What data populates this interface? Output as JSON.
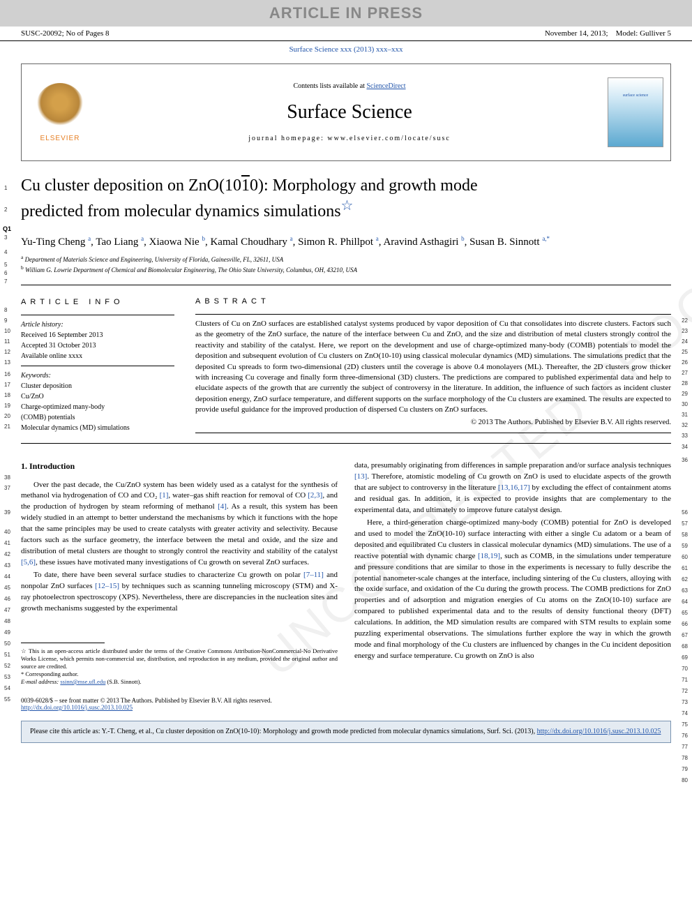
{
  "banner": "ARTICLE IN PRESS",
  "top_left": "SUSC-20092; No of Pages 8",
  "top_right_date": "November 14, 2013;",
  "top_right_model": "Model: Gulliver 5",
  "journal_ref": "Surface Science xxx (2013) xxx–xxx",
  "contents_prefix": "Contents lists available at ",
  "contents_link": "ScienceDirect",
  "journal_name": "Surface Science",
  "homepage": "journal homepage: www.elsevier.com/locate/susc",
  "elsevier": "ELSEVIER",
  "cover_label": "surface science",
  "title_line1": "Cu cluster deposition on ZnO(10",
  "title_line1_bar": "1",
  "title_line1_end": "0): Morphology and growth mode",
  "title_line2": "predicted from molecular dynamics simulations",
  "title_star": "☆",
  "authors_html": "Yu-Ting Cheng <sup>a</sup>, Tao Liang <sup>a</sup>, Xiaowa Nie <sup>b</sup>, Kamal Choudhary <sup>a</sup>, Simon R. Phillpot <sup>a</sup>, Aravind Asthagiri <sup>b</sup>, Susan B. Sinnott <sup>a,*</sup>",
  "aff_a": "Department of Materials Science and Engineering, University of Florida, Gainesville, FL, 32611, USA",
  "aff_b": "William G. Lowrie Department of Chemical and Biomolecular Engineering, The Ohio State University, Columbus, OH, 43210, USA",
  "q_marker": "Q1",
  "info_heading": "ARTICLE INFO",
  "history_label": "Article history:",
  "received": "Received 16 September 2013",
  "accepted": "Accepted 31 October 2013",
  "available": "Available online xxxx",
  "keywords_label": "Keywords:",
  "keywords": [
    "Cluster deposition",
    "Cu/ZnO",
    "Charge-optimized many-body",
    "(COMB) potentials",
    "Molecular dynamics (MD) simulations"
  ],
  "abstract_heading": "ABSTRACT",
  "abstract_text": "Clusters of Cu on ZnO surfaces are established catalyst systems produced by vapor deposition of Cu that consolidates into discrete clusters. Factors such as the geometry of the ZnO surface, the nature of the interface between Cu and ZnO, and the size and distribution of metal clusters strongly control the reactivity and stability of the catalyst. Here, we report on the development and use of charge-optimized many-body (COMB) potentials to model the deposition and subsequent evolution of Cu clusters on ZnO(10-10) using classical molecular dynamics (MD) simulations. The simulations predict that the deposited Cu spreads to form two-dimensional (2D) clusters until the coverage is above 0.4 monolayers (ML). Thereafter, the 2D clusters grow thicker with increasing Cu coverage and finally form three-dimensional (3D) clusters. The predictions are compared to published experimental data and help to elucidate aspects of the growth that are currently the subject of controversy in the literature. In addition, the influence of such factors as incident cluster deposition energy, ZnO surface temperature, and different supports on the surface morphology of the Cu clusters are examined. The results are expected to provide useful guidance for the improved production of dispersed Cu clusters on ZnO surfaces.",
  "copyright": "© 2013 The Authors. Published by Elsevier B.V. All rights reserved.",
  "sec1_heading": "1. Introduction",
  "col1_p1_a": "Over the past decade, the Cu/ZnO system has been widely used as a catalyst for the synthesis of methanol via hydrogenation of CO and CO₂ ",
  "col1_p1_r1": "[1]",
  "col1_p1_b": ", water–gas shift reaction for removal of CO ",
  "col1_p1_r2": "[2,3]",
  "col1_p1_c": ", and the production of hydrogen by steam reforming of methanol ",
  "col1_p1_r3": "[4]",
  "col1_p1_d": ". As a result, this system has been widely studied in an attempt to better understand the mechanisms by which it functions with the hope that the same principles may be used to create catalysts with greater activity and selectivity. Because factors such as the surface geometry, the interface between the metal and oxide, and the size and distribution of metal clusters are thought to strongly control the reactivity and stability of the catalyst ",
  "col1_p1_r4": "[5,6]",
  "col1_p1_e": ", these issues have motivated many investigations of Cu growth on several ZnO surfaces.",
  "col1_p2_a": "To date, there have been several surface studies to characterize Cu growth on polar ",
  "col1_p2_r1": "[7–11]",
  "col1_p2_b": " and nonpolar ZnO surfaces ",
  "col1_p2_r2": "[12–15]",
  "col1_p2_c": " by techniques such as scanning tunneling microscopy (STM) and X-ray photoelectron spectroscopy (XPS). Nevertheless, there are discrepancies in the nucleation sites and growth mechanisms suggested by the experimental",
  "col2_p1_a": "data, presumably originating from differences in sample preparation and/or surface analysis techniques ",
  "col2_p1_r1": "[13]",
  "col2_p1_b": ". Therefore, atomistic modeling of Cu growth on ZnO is used to elucidate aspects of the growth that are subject to controversy in the literature ",
  "col2_p1_r2": "[13,16,17]",
  "col2_p1_c": " by excluding the effect of containment atoms and residual gas. In addition, it is expected to provide insights that are complementary to the experimental data, and ultimately to improve future catalyst design.",
  "col2_p2_a": "Here, a third-generation charge-optimized many-body (COMB) potential for ZnO is developed and used to model the ZnO(10-10) surface interacting with either a single Cu adatom or a beam of deposited and equilibrated Cu clusters in classical molecular dynamics (MD) simulations. The use of a reactive potential with dynamic charge ",
  "col2_p2_r1": "[18,19]",
  "col2_p2_b": ", such as COMB, in the simulations under temperature and pressure conditions that are similar to those in the experiments is necessary to fully describe the potential nanometer-scale changes at the interface, including sintering of the Cu clusters, alloying with the oxide surface, and oxidation of the Cu during the growth process. The COMB predictions for ZnO properties and of adsorption and migration energies of Cu atoms on the ZnO(10-10) surface are compared to published experimental data and to the results of density functional theory (DFT) calculations. In addition, the MD simulation results are compared with STM results to explain some puzzling experimental observations. The simulations further explore the way in which the growth mode and final morphology of the Cu clusters are influenced by changes in the Cu incident deposition energy and surface temperature. Cu growth on ZnO is also",
  "fn_star": "☆ This is an open-access article distributed under the terms of the Creative Commons Attribution-NonCommercial-No Derivative Works License, which permits non-commercial use, distribution, and reproduction in any medium, provided the original author and source are credited.",
  "fn_corr": "* Corresponding author.",
  "fn_email_label": "E-mail address: ",
  "fn_email": "ssinn@mse.ufl.edu",
  "fn_email_tail": " (S.B. Sinnott).",
  "doi_text": "0039-6028/$ – see front matter © 2013 The Authors. Published by Elsevier B.V. All rights reserved.",
  "doi_link": "http://dx.doi.org/10.1016/j.susc.2013.10.025",
  "cite_text_a": "Please cite this article as: Y.-T. Cheng, et al., Cu cluster deposition on ZnO(10-10): Morphology and growth mode predicted from molecular dynamics simulations, Surf. Sci. (2013), ",
  "cite_link": "http://dx.doi.org/10.1016/j.susc.2013.10.025",
  "watermark": "UNCORRECTED PROOF",
  "line_nums_left": {
    "1": 265,
    "2": 296,
    "3": 336,
    "4": 357,
    "5": 375,
    "6": 387,
    "7": 399,
    "8": 440,
    "9": 455,
    "10": 470,
    "11": 485,
    "12": 500,
    "13": 515,
    "16": 532,
    "17": 547,
    "18": 562,
    "19": 577,
    "20": 592,
    "21": 607,
    "38": 680,
    "37": 695,
    "39": 730,
    "40": 758,
    "41": 774,
    "42": 790,
    "43": 806,
    "44": 822,
    "45": 838,
    "46": 854,
    "47": 870,
    "48": 886,
    "49": 902,
    "50": 918,
    "51": 934,
    "52": 950,
    "53": 966,
    "54": 982,
    "55": 998
  },
  "line_nums_right": {
    "22": 455,
    "23": 470,
    "24": 485,
    "25": 500,
    "26": 515,
    "27": 530,
    "28": 545,
    "29": 560,
    "30": 575,
    "31": 590,
    "32": 605,
    "33": 620,
    "34": 636,
    "36": 655,
    "56": 730,
    "57": 746,
    "58": 762,
    "59": 778,
    "60": 794,
    "61": 810,
    "62": 826,
    "63": 842,
    "64": 858,
    "65": 874,
    "66": 890,
    "67": 906,
    "68": 922,
    "69": 938,
    "70": 954,
    "71": 970,
    "72": 986,
    "73": 1002,
    "74": 1018,
    "75": 1034,
    "76": 1050,
    "77": 1066,
    "78": 1082,
    "79": 1098,
    "80": 1114
  },
  "colors": {
    "link": "#2255aa",
    "banner_bg": "#d0d0d0",
    "banner_fg": "#888888",
    "cite_bg": "#e4ebf2",
    "cite_border": "#7a94b0"
  }
}
